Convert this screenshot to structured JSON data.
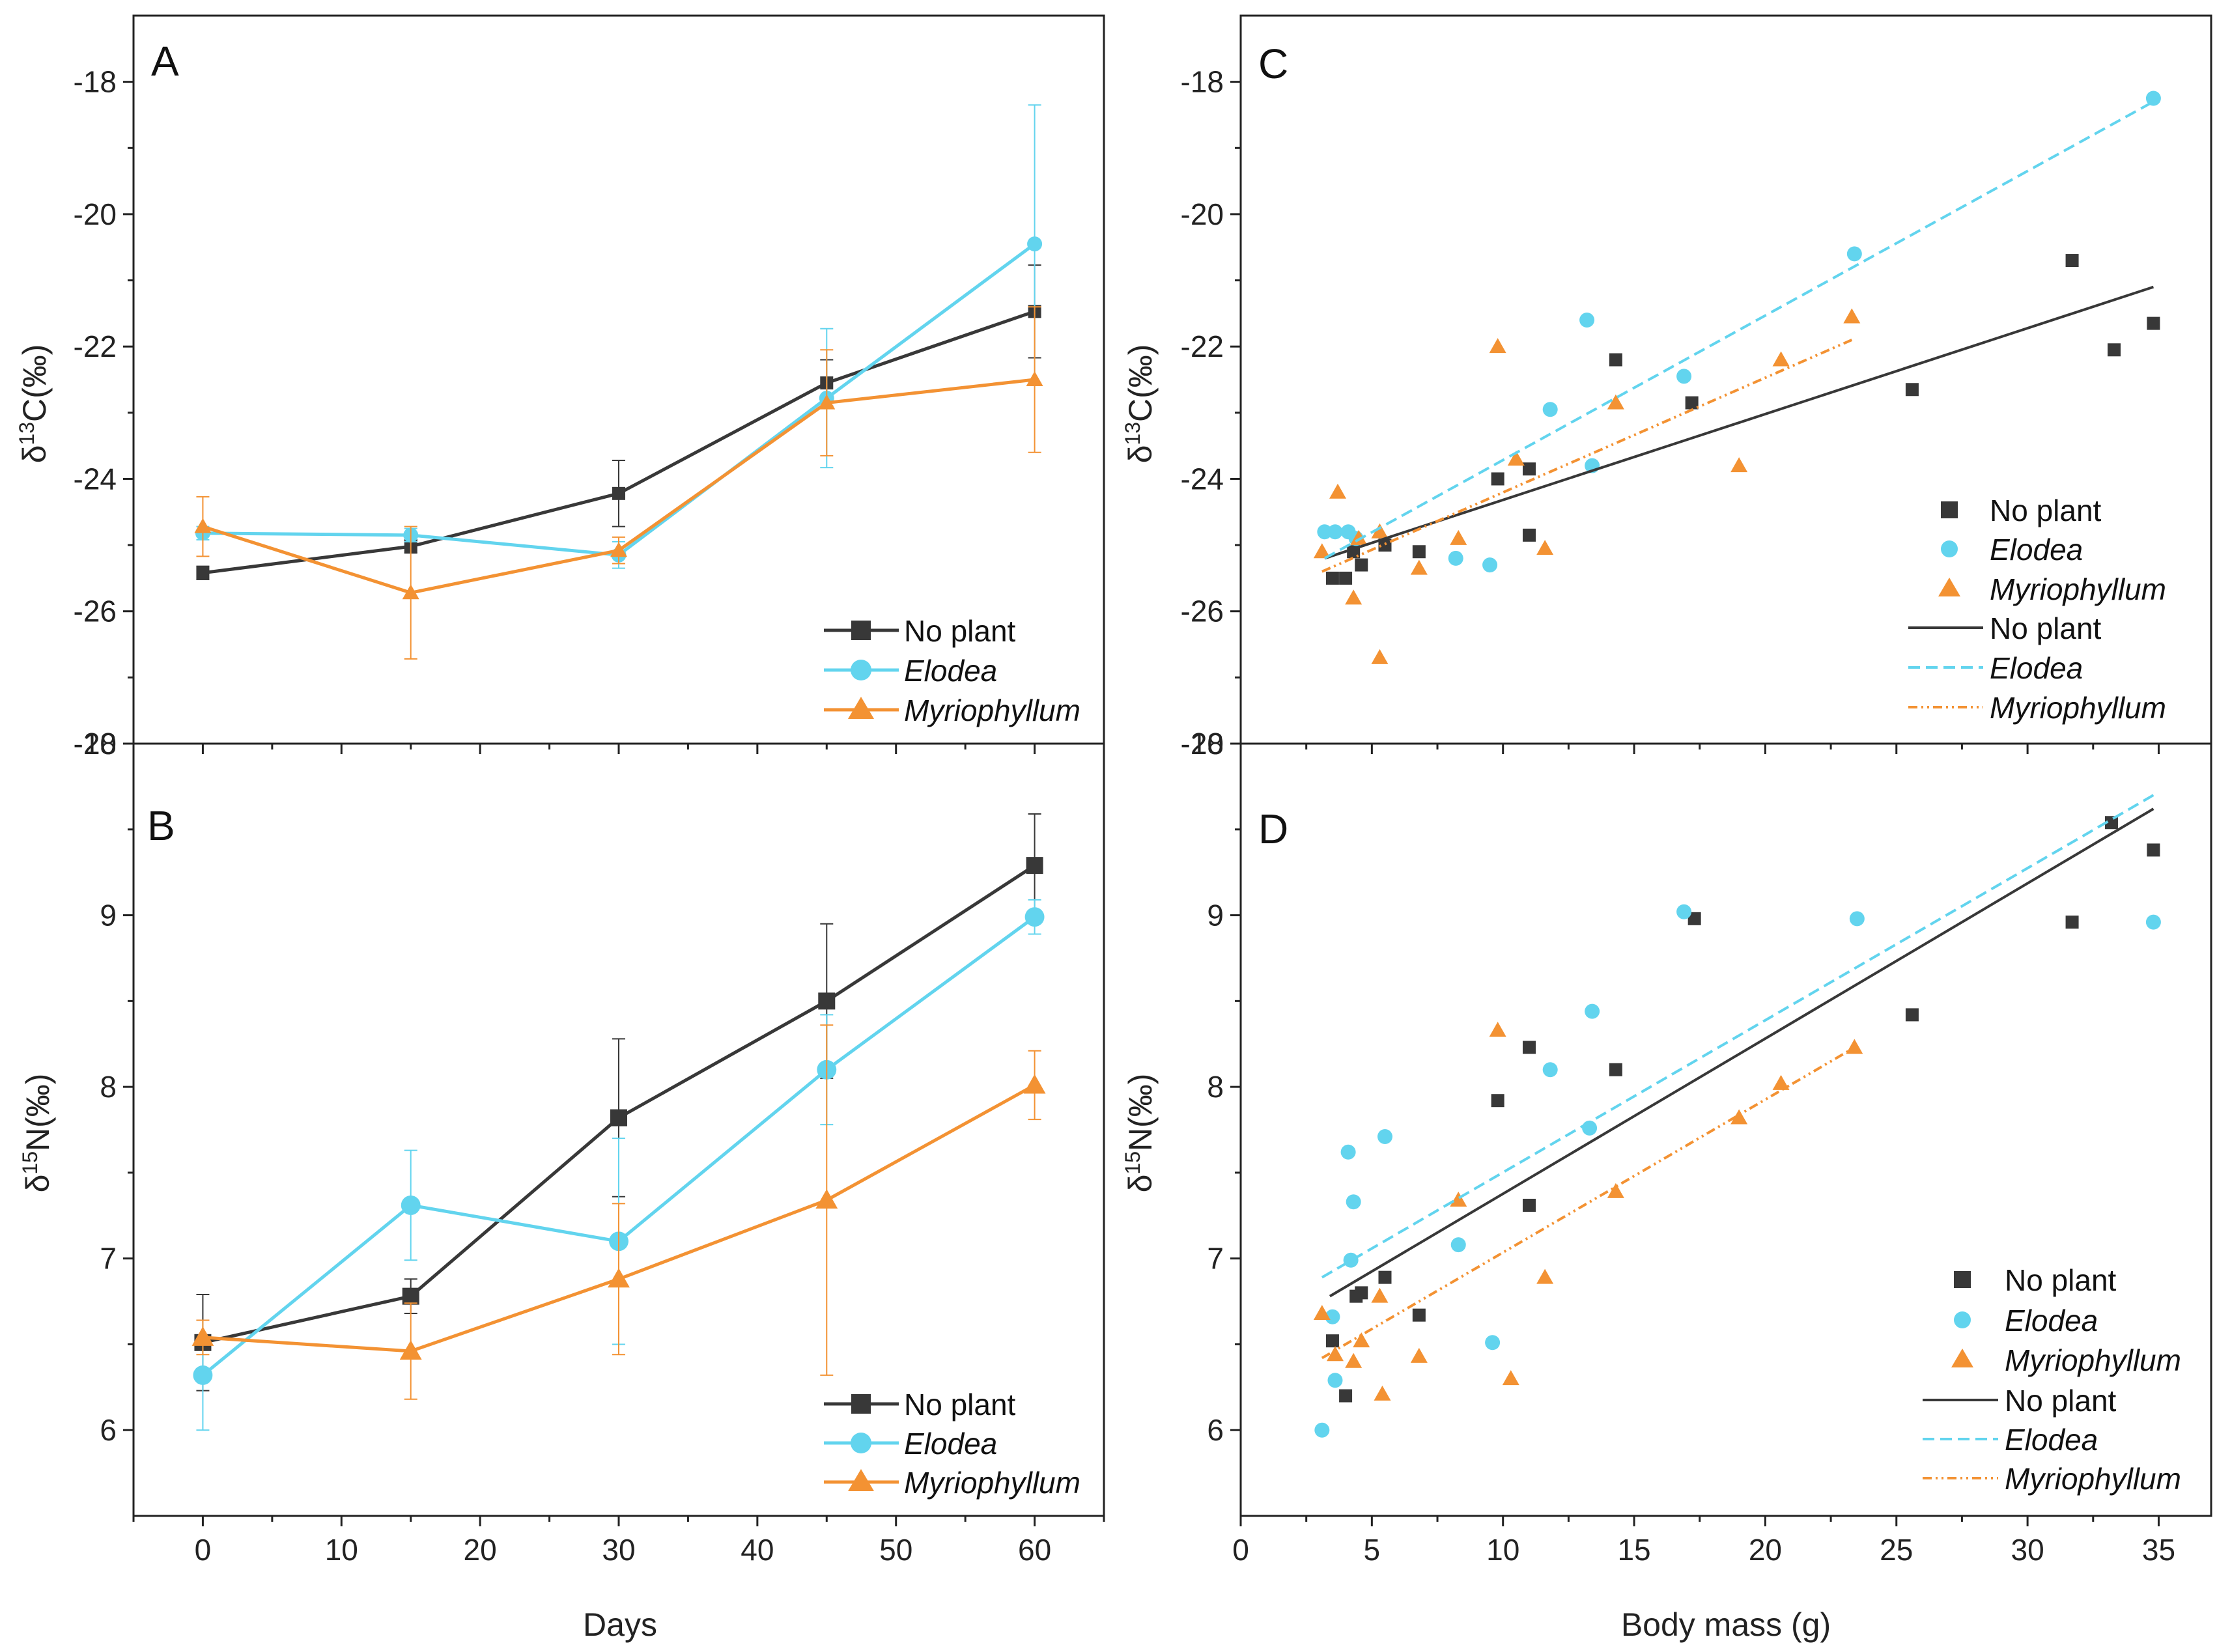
{
  "colors": {
    "no_plant": "#383838",
    "elodea": "#62D4EE",
    "myriophyllum": "#F39233",
    "axis": "#222222"
  },
  "chart_data": [
    {
      "id": "A",
      "type": "line",
      "panel_label": "A",
      "xlabel": "",
      "ylabel_main": "C(‰)",
      "ylabel_super": "13",
      "xlim": [
        -5,
        65
      ],
      "ylim": [
        -28,
        -17
      ],
      "xticks": [
        0,
        10,
        20,
        30,
        40,
        50,
        60
      ],
      "yticks": [
        -28,
        -26,
        -24,
        -22,
        -20,
        -18
      ],
      "x": [
        0,
        15,
        30,
        45,
        60
      ],
      "series": [
        {
          "name": "No plant",
          "marker": "square",
          "values": [
            -25.42,
            -25.02,
            -24.22,
            -22.55,
            -21.47
          ],
          "errors": [
            0.1,
            0.1,
            0.5,
            0.35,
            0.7
          ]
        },
        {
          "name": "Elodea",
          "marker": "circle",
          "values": [
            -24.82,
            -24.85,
            -25.15,
            -22.78,
            -20.45
          ],
          "errors": [
            0.1,
            0.1,
            0.2,
            1.05,
            2.1
          ]
        },
        {
          "name": "Myriophyllum",
          "marker": "triangle",
          "values": [
            -24.72,
            -25.72,
            -25.08,
            -22.85,
            -22.5
          ],
          "errors": [
            0.45,
            1.0,
            0.2,
            0.8,
            1.1
          ]
        }
      ],
      "legend_position": "bottom-right"
    },
    {
      "id": "B",
      "type": "line",
      "panel_label": "B",
      "xlabel": "Days",
      "ylabel_main": "N(‰)",
      "ylabel_super": "15",
      "xlim": [
        -5,
        65
      ],
      "ylim": [
        5.5,
        10
      ],
      "xticks": [
        0,
        10,
        20,
        30,
        40,
        50,
        60
      ],
      "yticks": [
        6,
        7,
        8,
        9,
        10
      ],
      "x": [
        0,
        15,
        30,
        45,
        60
      ],
      "series": [
        {
          "name": "No plant",
          "marker": "square",
          "values": [
            6.51,
            6.78,
            7.82,
            8.5,
            9.29
          ],
          "errors": [
            0.28,
            0.1,
            0.46,
            0.45,
            0.3
          ]
        },
        {
          "name": "Elodea",
          "marker": "circle",
          "values": [
            6.32,
            7.31,
            7.1,
            8.1,
            8.99
          ],
          "errors": [
            0.32,
            0.32,
            0.6,
            0.32,
            0.1
          ]
        },
        {
          "name": "Myriophyllum",
          "marker": "triangle",
          "values": [
            6.54,
            6.46,
            6.88,
            7.34,
            8.01
          ],
          "errors": [
            0.1,
            0.28,
            0.44,
            1.02,
            0.2
          ]
        }
      ],
      "legend_position": "bottom-right"
    },
    {
      "id": "C",
      "type": "scatter",
      "panel_label": "C",
      "xlabel": "",
      "ylabel_main": "C(‰)",
      "ylabel_super": "13",
      "xlim": [
        0,
        37
      ],
      "ylim": [
        -28,
        -17
      ],
      "xticks": [
        0,
        5,
        10,
        15,
        20,
        25,
        30,
        35
      ],
      "yticks": [
        -28,
        -26,
        -24,
        -22,
        -20,
        -18
      ],
      "series": [
        {
          "name": "No plant",
          "marker": "square",
          "points": [
            [
              3.5,
              -25.5
            ],
            [
              4.0,
              -25.5
            ],
            [
              4.3,
              -25.1
            ],
            [
              4.6,
              -25.3
            ],
            [
              5.5,
              -25.0
            ],
            [
              6.8,
              -25.1
            ],
            [
              9.8,
              -24.0
            ],
            [
              11.0,
              -23.85
            ],
            [
              11.0,
              -24.85
            ],
            [
              14.3,
              -22.2
            ],
            [
              17.2,
              -22.85
            ],
            [
              25.6,
              -22.65
            ],
            [
              31.7,
              -20.7
            ],
            [
              33.3,
              -22.05
            ],
            [
              34.8,
              -21.65
            ]
          ]
        },
        {
          "name": "Elodea",
          "marker": "circle",
          "points": [
            [
              3.2,
              -24.8
            ],
            [
              3.6,
              -24.8
            ],
            [
              4.1,
              -24.8
            ],
            [
              4.4,
              -24.9
            ],
            [
              8.2,
              -25.2
            ],
            [
              9.5,
              -25.3
            ],
            [
              11.8,
              -22.95
            ],
            [
              13.2,
              -21.6
            ],
            [
              13.4,
              -23.8
            ],
            [
              16.9,
              -22.45
            ],
            [
              23.4,
              -20.6
            ],
            [
              34.8,
              -18.25
            ]
          ]
        },
        {
          "name": "Myriophyllum",
          "marker": "triangle",
          "points": [
            [
              3.1,
              -25.1
            ],
            [
              3.7,
              -24.2
            ],
            [
              4.3,
              -25.8
            ],
            [
              4.5,
              -24.9
            ],
            [
              5.3,
              -24.8
            ],
            [
              5.3,
              -26.7
            ],
            [
              6.8,
              -25.35
            ],
            [
              8.3,
              -24.9
            ],
            [
              9.8,
              -22.0
            ],
            [
              10.5,
              -23.7
            ],
            [
              11.6,
              -25.05
            ],
            [
              14.3,
              -22.85
            ],
            [
              19.0,
              -23.8
            ],
            [
              20.6,
              -22.2
            ],
            [
              23.3,
              -21.55
            ]
          ]
        },
        {
          "name": "No plant",
          "type": "fit",
          "style": "solid",
          "line": [
            [
              3.2,
              -25.2
            ],
            [
              34.8,
              -21.1
            ]
          ]
        },
        {
          "name": "Elodea",
          "type": "fit",
          "style": "dashed",
          "line": [
            [
              3.2,
              -25.2
            ],
            [
              34.8,
              -18.3
            ]
          ]
        },
        {
          "name": "Myriophyllum",
          "type": "fit",
          "style": "dash-dot-dot",
          "line": [
            [
              3.1,
              -25.4
            ],
            [
              23.3,
              -21.9
            ]
          ]
        }
      ],
      "legend_position": "right"
    },
    {
      "id": "D",
      "type": "scatter",
      "panel_label": "D",
      "xlabel": "Body mass (g)",
      "ylabel_main": "N(‰)",
      "ylabel_super": "15",
      "xlim": [
        0,
        37
      ],
      "ylim": [
        5.5,
        10
      ],
      "xticks": [
        0,
        5,
        10,
        15,
        20,
        25,
        30,
        35
      ],
      "yticks": [
        6,
        7,
        8,
        9,
        10
      ],
      "series": [
        {
          "name": "No plant",
          "marker": "square",
          "points": [
            [
              3.5,
              6.52
            ],
            [
              4.0,
              6.2
            ],
            [
              4.4,
              6.78
            ],
            [
              4.6,
              6.8
            ],
            [
              5.5,
              6.89
            ],
            [
              6.8,
              6.67
            ],
            [
              9.8,
              7.92
            ],
            [
              11.0,
              8.23
            ],
            [
              11.0,
              7.31
            ],
            [
              14.3,
              8.1
            ],
            [
              17.3,
              8.98
            ],
            [
              25.6,
              8.42
            ],
            [
              31.7,
              8.96
            ],
            [
              33.2,
              9.54
            ],
            [
              34.8,
              9.38
            ]
          ]
        },
        {
          "name": "Elodea",
          "marker": "circle",
          "points": [
            [
              3.1,
              6.0
            ],
            [
              3.5,
              6.66
            ],
            [
              3.6,
              6.29
            ],
            [
              4.1,
              7.62
            ],
            [
              4.2,
              6.99
            ],
            [
              4.3,
              7.33
            ],
            [
              5.5,
              7.71
            ],
            [
              8.3,
              7.08
            ],
            [
              9.6,
              6.51
            ],
            [
              11.8,
              8.1
            ],
            [
              13.3,
              7.76
            ],
            [
              13.4,
              8.44
            ],
            [
              16.9,
              9.02
            ],
            [
              23.5,
              8.98
            ],
            [
              34.8,
              8.96
            ]
          ]
        },
        {
          "name": "Myriophyllum",
          "marker": "triangle",
          "points": [
            [
              3.1,
              6.68
            ],
            [
              3.6,
              6.44
            ],
            [
              4.3,
              6.4
            ],
            [
              4.6,
              6.52
            ],
            [
              5.3,
              6.78
            ],
            [
              5.4,
              6.21
            ],
            [
              6.8,
              6.43
            ],
            [
              8.3,
              7.34
            ],
            [
              9.8,
              8.33
            ],
            [
              10.3,
              6.3
            ],
            [
              11.6,
              6.89
            ],
            [
              14.3,
              7.39
            ],
            [
              19.0,
              7.82
            ],
            [
              20.6,
              8.02
            ],
            [
              23.4,
              8.23
            ]
          ]
        },
        {
          "name": "No plant",
          "type": "fit",
          "style": "solid",
          "line": [
            [
              3.4,
              6.78
            ],
            [
              34.8,
              9.62
            ]
          ]
        },
        {
          "name": "Elodea",
          "type": "fit",
          "style": "dashed",
          "line": [
            [
              3.1,
              6.89
            ],
            [
              34.8,
              9.7
            ]
          ]
        },
        {
          "name": "Myriophyllum",
          "type": "fit",
          "style": "dash-dot-dot",
          "line": [
            [
              3.1,
              6.42
            ],
            [
              23.3,
              8.22
            ]
          ]
        }
      ],
      "legend_position": "right"
    }
  ]
}
